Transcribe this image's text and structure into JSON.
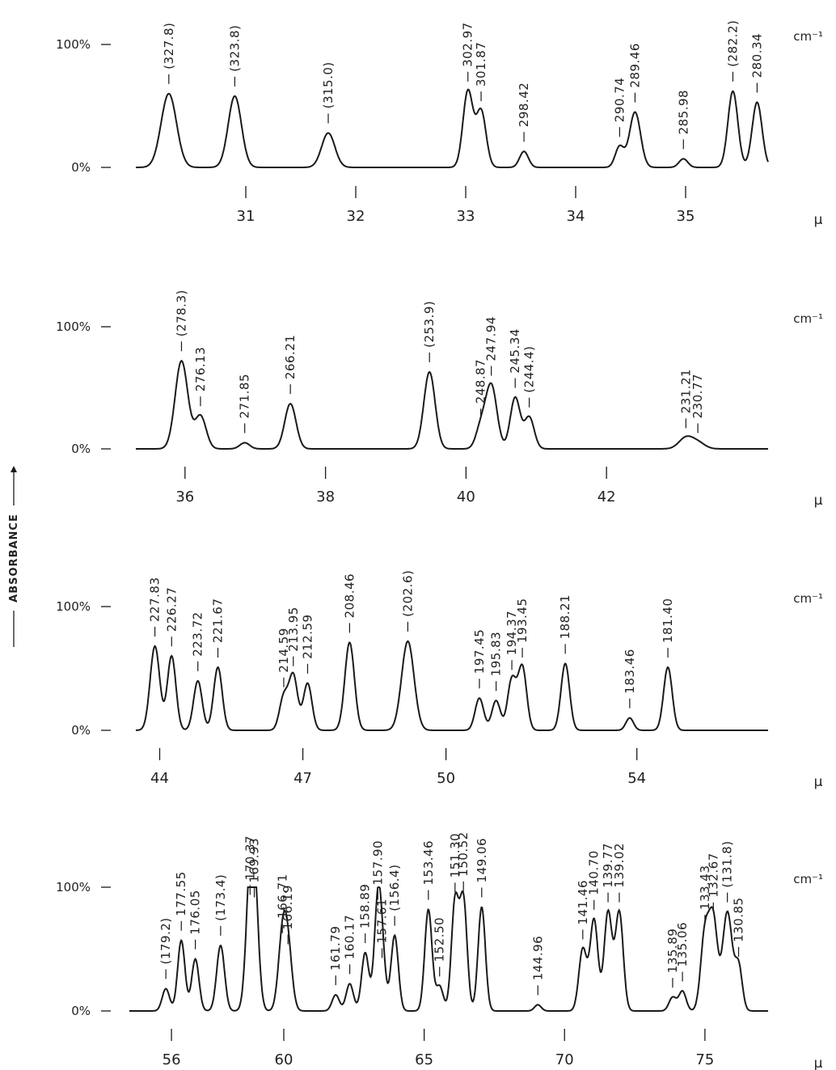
{
  "y_title": "ABSORBANCE",
  "chart_data": [
    {
      "type": "line",
      "y_units": [
        "0%",
        "100%"
      ],
      "wavenumber_unit": "cm⁻¹",
      "x_unit": "μ",
      "x_range": [
        30.0,
        35.75
      ],
      "x_ticks": [
        "31",
        "32",
        "33",
        "34",
        "35"
      ],
      "peaks": [
        {
          "x": 30.3,
          "y": 60,
          "w": 0.07,
          "label": "(327.8)"
        },
        {
          "x": 30.9,
          "y": 58,
          "w": 0.06,
          "label": "(323.8)"
        },
        {
          "x": 31.75,
          "y": 28,
          "w": 0.06,
          "label": "(315.0)"
        },
        {
          "x": 33.02,
          "y": 62,
          "w": 0.045,
          "label": "302.97"
        },
        {
          "x": 33.14,
          "y": 46,
          "w": 0.045,
          "label": "301.87"
        },
        {
          "x": 33.53,
          "y": 13,
          "w": 0.04,
          "label": "298.42"
        },
        {
          "x": 34.4,
          "y": 17,
          "w": 0.04,
          "label": "290.74"
        },
        {
          "x": 34.54,
          "y": 45,
          "w": 0.05,
          "label": "289.46"
        },
        {
          "x": 34.98,
          "y": 7,
          "w": 0.04,
          "label": "285.98"
        },
        {
          "x": 35.43,
          "y": 62,
          "w": 0.045,
          "label": "(282.2)"
        },
        {
          "x": 35.65,
          "y": 53,
          "w": 0.045,
          "label": "280.34"
        }
      ]
    },
    {
      "type": "line",
      "y_units": [
        "0%",
        "100%"
      ],
      "wavenumber_unit": "cm⁻¹",
      "x_unit": "μ",
      "x_range": [
        35.3,
        44.3
      ],
      "x_ticks": [
        "36",
        "38",
        "40",
        "42"
      ],
      "peaks": [
        {
          "x": 35.95,
          "y": 72,
          "w": 0.09,
          "label": "(278.3)"
        },
        {
          "x": 36.22,
          "y": 27,
          "w": 0.08,
          "label": "276.13"
        },
        {
          "x": 36.85,
          "y": 5,
          "w": 0.07,
          "label": "271.85"
        },
        {
          "x": 37.5,
          "y": 37,
          "w": 0.08,
          "label": "266.21"
        },
        {
          "x": 39.48,
          "y": 63,
          "w": 0.08,
          "label": "(253.9)"
        },
        {
          "x": 40.21,
          "y": 17,
          "w": 0.07,
          "label": "248.87"
        },
        {
          "x": 40.36,
          "y": 52,
          "w": 0.08,
          "label": "247.94"
        },
        {
          "x": 40.7,
          "y": 42,
          "w": 0.07,
          "label": "245.34"
        },
        {
          "x": 40.9,
          "y": 26,
          "w": 0.07,
          "label": "(244.4)"
        },
        {
          "x": 43.13,
          "y": 9,
          "w": 0.1,
          "label": "231.21"
        },
        {
          "x": 43.3,
          "y": 5,
          "w": 0.1,
          "label": "230.77"
        }
      ]
    },
    {
      "type": "line",
      "y_units": [
        "0%",
        "100%"
      ],
      "wavenumber_unit": "cm⁻¹",
      "x_unit": "μ",
      "x_range": [
        43.5,
        56.75
      ],
      "x_ticks": [
        "44",
        "47",
        "50",
        "54"
      ],
      "peaks": [
        {
          "x": 43.9,
          "y": 68,
          "w": 0.1,
          "label": "227.83"
        },
        {
          "x": 44.25,
          "y": 60,
          "w": 0.09,
          "label": "226.27"
        },
        {
          "x": 44.8,
          "y": 40,
          "w": 0.09,
          "label": "223.72"
        },
        {
          "x": 45.22,
          "y": 51,
          "w": 0.09,
          "label": "221.67"
        },
        {
          "x": 46.6,
          "y": 27,
          "w": 0.09,
          "label": "214.59"
        },
        {
          "x": 46.8,
          "y": 44,
          "w": 0.09,
          "label": "213.95"
        },
        {
          "x": 47.1,
          "y": 38,
          "w": 0.09,
          "label": "212.59"
        },
        {
          "x": 47.98,
          "y": 71,
          "w": 0.1,
          "label": "208.46"
        },
        {
          "x": 49.2,
          "y": 72,
          "w": 0.13,
          "label": "(202.6)"
        },
        {
          "x": 50.7,
          "y": 26,
          "w": 0.09,
          "label": "197.45"
        },
        {
          "x": 51.05,
          "y": 24,
          "w": 0.09,
          "label": "195.83"
        },
        {
          "x": 51.38,
          "y": 41,
          "w": 0.09,
          "label": "194.37"
        },
        {
          "x": 51.6,
          "y": 51,
          "w": 0.09,
          "label": "193.45"
        },
        {
          "x": 52.5,
          "y": 54,
          "w": 0.09,
          "label": "188.21"
        },
        {
          "x": 53.85,
          "y": 10,
          "w": 0.08,
          "label": "183.46"
        },
        {
          "x": 54.65,
          "y": 51,
          "w": 0.09,
          "label": "181.40"
        }
      ]
    },
    {
      "type": "line",
      "y_units": [
        "0%",
        "100%"
      ],
      "wavenumber_unit": "cm⁻¹",
      "x_unit": "μ",
      "x_range": [
        54.5,
        77.25
      ],
      "x_ticks": [
        "56",
        "60",
        "65",
        "70",
        "75"
      ],
      "peaks": [
        {
          "x": 55.8,
          "y": 18,
          "w": 0.13,
          "label": "(179.2)"
        },
        {
          "x": 56.35,
          "y": 57,
          "w": 0.13,
          "label": "177.55"
        },
        {
          "x": 56.85,
          "y": 42,
          "w": 0.13,
          "label": "176.05"
        },
        {
          "x": 57.75,
          "y": 53,
          "w": 0.14,
          "label": "(173.4)"
        },
        {
          "x": 58.8,
          "y": 86,
          "w": 0.15,
          "label": "170.37"
        },
        {
          "x": 58.95,
          "y": 84,
          "w": 0.15,
          "label": "169.93"
        },
        {
          "x": 59.95,
          "y": 55,
          "w": 0.15,
          "label": "166.71"
        },
        {
          "x": 60.15,
          "y": 46,
          "w": 0.15,
          "label": "166.19"
        },
        {
          "x": 61.85,
          "y": 13,
          "w": 0.13,
          "label": "161.79"
        },
        {
          "x": 62.35,
          "y": 22,
          "w": 0.13,
          "label": "160.17"
        },
        {
          "x": 62.9,
          "y": 47,
          "w": 0.13,
          "label": "158.89"
        },
        {
          "x": 63.35,
          "y": 82,
          "w": 0.13,
          "label": "157.90"
        },
        {
          "x": 63.5,
          "y": 35,
          "w": 0.13,
          "label": "157.61"
        },
        {
          "x": 63.95,
          "y": 61,
          "w": 0.13,
          "label": "(156.4)"
        },
        {
          "x": 65.15,
          "y": 82,
          "w": 0.13,
          "label": "153.46"
        },
        {
          "x": 65.55,
          "y": 20,
          "w": 0.13,
          "label": "152.50"
        },
        {
          "x": 66.1,
          "y": 88,
          "w": 0.13,
          "label": "151.30"
        },
        {
          "x": 66.4,
          "y": 89,
          "w": 0.13,
          "label": "150.52"
        },
        {
          "x": 67.05,
          "y": 84,
          "w": 0.13,
          "label": "149.06"
        },
        {
          "x": 69.05,
          "y": 5,
          "w": 0.12,
          "label": "144.96"
        },
        {
          "x": 70.65,
          "y": 50,
          "w": 0.14,
          "label": "141.46"
        },
        {
          "x": 71.05,
          "y": 74,
          "w": 0.14,
          "label": "140.70"
        },
        {
          "x": 71.55,
          "y": 80,
          "w": 0.14,
          "label": "139.77"
        },
        {
          "x": 71.95,
          "y": 80,
          "w": 0.14,
          "label": "139.02"
        },
        {
          "x": 73.85,
          "y": 11,
          "w": 0.13,
          "label": "135.89"
        },
        {
          "x": 74.2,
          "y": 16,
          "w": 0.13,
          "label": "135.06"
        },
        {
          "x": 75.0,
          "y": 62,
          "w": 0.15,
          "label": "133.43"
        },
        {
          "x": 75.3,
          "y": 72,
          "w": 0.15,
          "label": "132.67"
        },
        {
          "x": 75.8,
          "y": 80,
          "w": 0.17,
          "label": "(131.8)"
        },
        {
          "x": 76.2,
          "y": 36,
          "w": 0.13,
          "label": "130.85"
        }
      ]
    }
  ]
}
